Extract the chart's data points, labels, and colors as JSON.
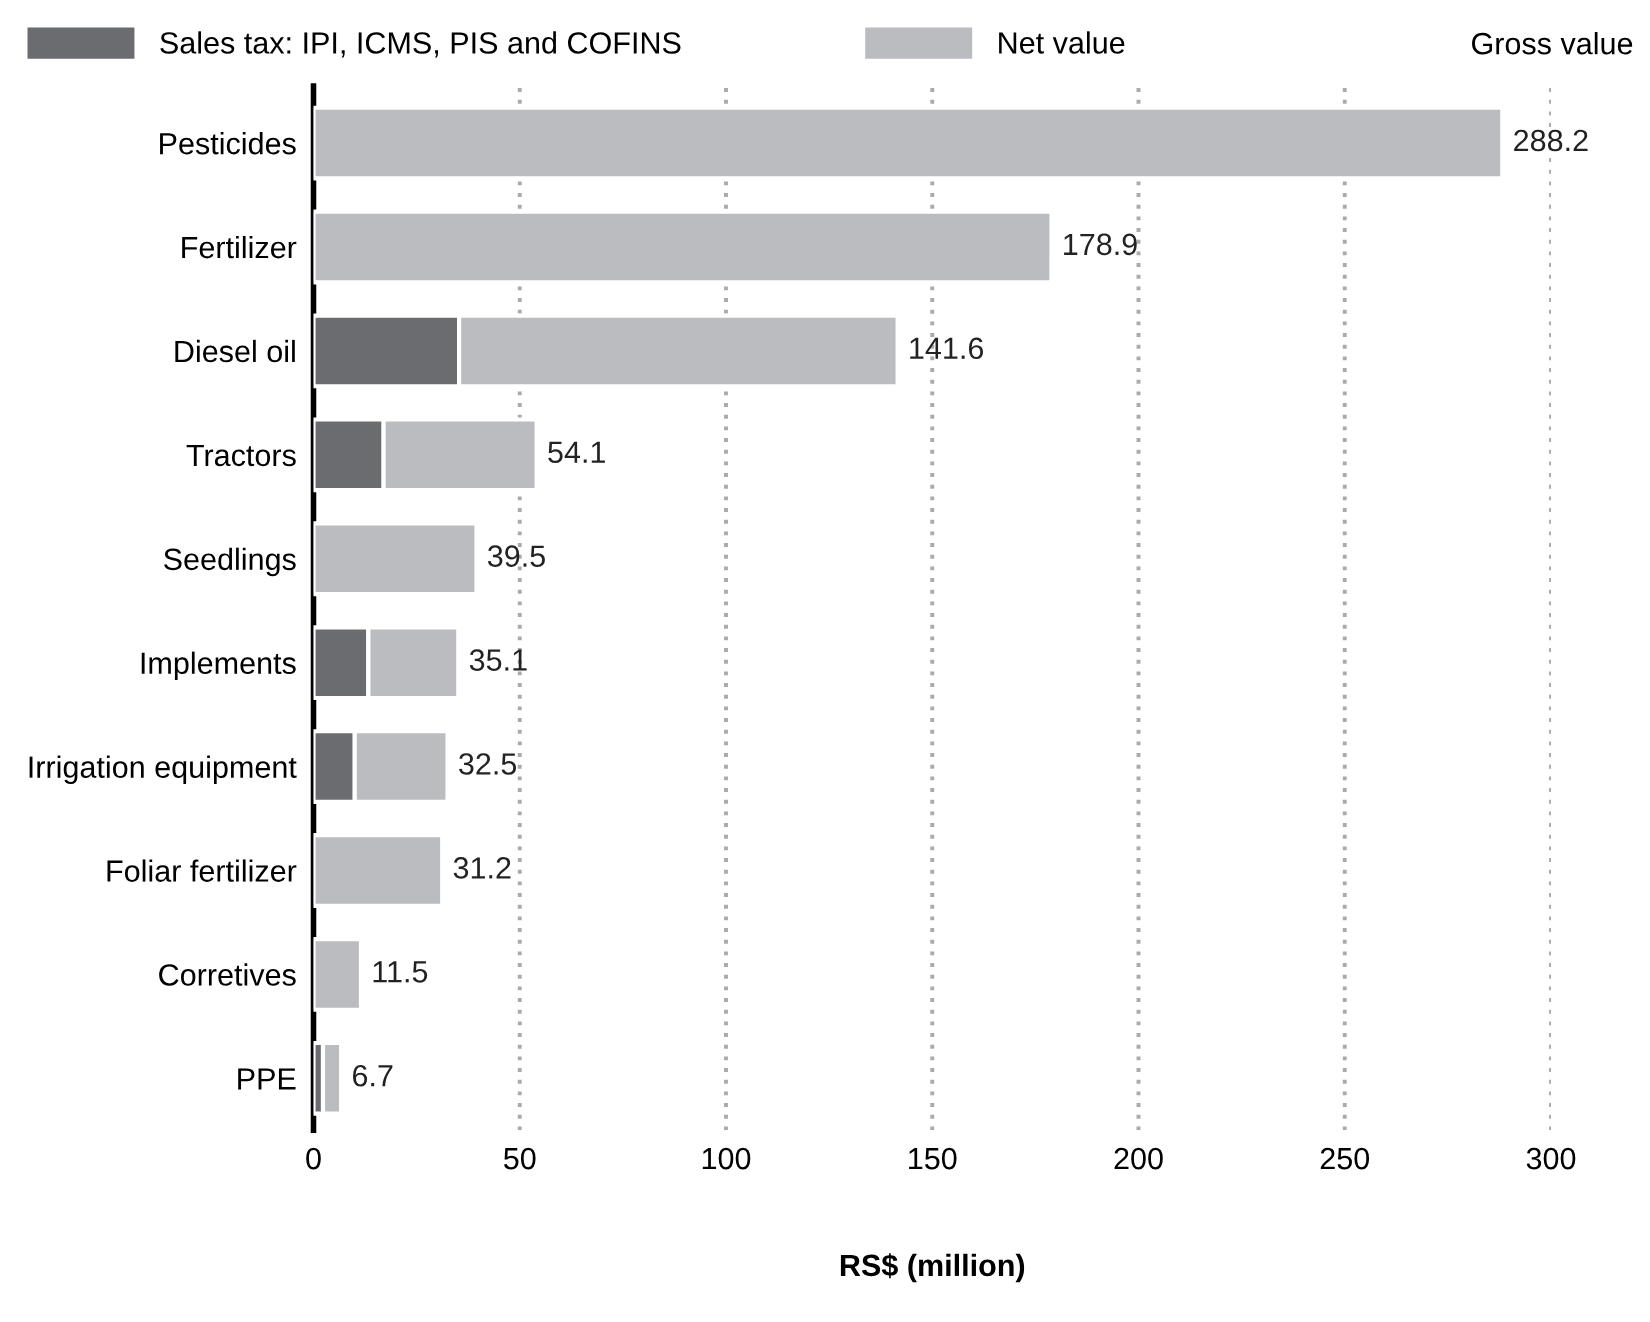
{
  "chart_data": {
    "type": "bar",
    "orientation": "horizontal",
    "stacked": true,
    "categories": [
      "Pesticides",
      "Fertilizer",
      "Diesel oil",
      "Tractors",
      "Seedlings",
      "Implements",
      "Irrigation equipment",
      "Foliar fertilizer",
      "Corretives",
      "PPE"
    ],
    "series": [
      {
        "name": "Sales tax: IPI, ICMS, PIS and COFINS",
        "color": "#6b6c70",
        "values": [
          null,
          null,
          35.3,
          17.0,
          null,
          13.3,
          10.0,
          null,
          null,
          2.3
        ]
      },
      {
        "name": "Net value",
        "color": "#bbbcc0",
        "values": [
          288.2,
          178.9,
          106.3,
          37.1,
          39.5,
          21.8,
          22.5,
          31.2,
          11.5,
          4.4
        ]
      }
    ],
    "totals": [
      "288.2",
      "178.9",
      "141.6",
      "54.1",
      "39.5",
      "35.1",
      "32.5",
      "31.2",
      "11.5",
      "6.7"
    ],
    "annotations": [
      "Gross value"
    ],
    "xlabel": "RS$ (million)",
    "xlim": [
      0,
      300
    ],
    "xticks": [
      0,
      50,
      100,
      150,
      200,
      250,
      300
    ],
    "grid": "x",
    "legend": "top"
  }
}
